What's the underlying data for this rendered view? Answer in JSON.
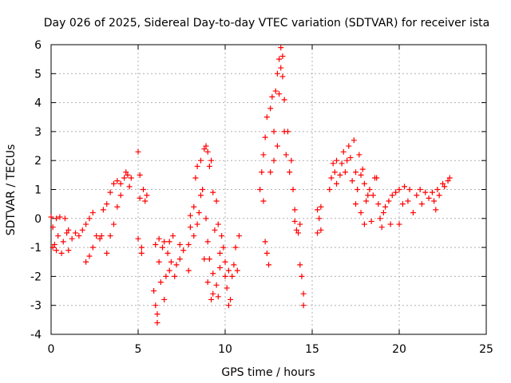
{
  "chart_data": {
    "type": "scatter",
    "title": "Day 026 of 2025, Sidereal Day-to-day VTEC variation (SDTVAR) for receiver ista",
    "xlabel": "GPS time / hours",
    "ylabel": "SDTVAR / TECUs",
    "xlim": [
      0,
      25
    ],
    "ylim": [
      -4,
      6
    ],
    "xticks": [
      "0",
      "5",
      "10",
      "15",
      "20",
      "25"
    ],
    "yticks": [
      "-4",
      "-3",
      "-2",
      "-1",
      "0",
      "1",
      "2",
      "3",
      "4",
      "5",
      "6"
    ],
    "grid": true,
    "marker": "+",
    "color": "#ff0000",
    "series": [
      {
        "name": "SDTVAR ista",
        "points": [
          [
            0.0,
            0.05
          ],
          [
            0.1,
            -0.3
          ],
          [
            0.1,
            -1.0
          ],
          [
            0.2,
            -0.9
          ],
          [
            0.3,
            0.0
          ],
          [
            0.3,
            -1.1
          ],
          [
            0.4,
            -0.6
          ],
          [
            0.5,
            0.05
          ],
          [
            0.6,
            -1.2
          ],
          [
            0.7,
            -0.8
          ],
          [
            0.8,
            0.0
          ],
          [
            0.9,
            -0.5
          ],
          [
            1.0,
            -1.1
          ],
          [
            1.0,
            -0.4
          ],
          [
            1.2,
            -0.7
          ],
          [
            1.4,
            -0.5
          ],
          [
            1.6,
            -0.6
          ],
          [
            1.8,
            -0.4
          ],
          [
            2.0,
            -0.2
          ],
          [
            2.0,
            -1.5
          ],
          [
            2.2,
            -1.3
          ],
          [
            2.2,
            0.0
          ],
          [
            2.4,
            -1.0
          ],
          [
            2.4,
            0.2
          ],
          [
            2.6,
            -0.6
          ],
          [
            2.8,
            -0.7
          ],
          [
            2.9,
            -0.6
          ],
          [
            3.0,
            0.3
          ],
          [
            3.2,
            -1.2
          ],
          [
            3.2,
            0.5
          ],
          [
            3.4,
            -0.6
          ],
          [
            3.4,
            0.9
          ],
          [
            3.6,
            -0.2
          ],
          [
            3.6,
            1.2
          ],
          [
            3.8,
            0.4
          ],
          [
            3.8,
            1.3
          ],
          [
            4.0,
            0.8
          ],
          [
            4.0,
            1.2
          ],
          [
            4.2,
            1.4
          ],
          [
            4.3,
            1.6
          ],
          [
            4.4,
            1.5
          ],
          [
            4.5,
            1.1
          ],
          [
            4.6,
            1.4
          ],
          [
            5.0,
            2.3
          ],
          [
            5.0,
            -0.7
          ],
          [
            5.1,
            1.5
          ],
          [
            5.1,
            0.7
          ],
          [
            5.2,
            -1.0
          ],
          [
            5.2,
            -1.2
          ],
          [
            5.3,
            1.0
          ],
          [
            5.4,
            0.6
          ],
          [
            5.5,
            0.8
          ],
          [
            5.9,
            -2.5
          ],
          [
            6.0,
            -3.0
          ],
          [
            6.0,
            -0.9
          ],
          [
            6.1,
            -3.6
          ],
          [
            6.1,
            -3.3
          ],
          [
            6.2,
            -1.5
          ],
          [
            6.2,
            -0.7
          ],
          [
            6.3,
            -2.2
          ],
          [
            6.4,
            -1.0
          ],
          [
            6.5,
            -2.8
          ],
          [
            6.5,
            -0.8
          ],
          [
            6.6,
            -2.0
          ],
          [
            6.7,
            -1.2
          ],
          [
            6.8,
            -1.8
          ],
          [
            6.8,
            -0.8
          ],
          [
            6.9,
            -1.5
          ],
          [
            7.0,
            -0.6
          ],
          [
            7.1,
            -2.0
          ],
          [
            7.2,
            -1.6
          ],
          [
            7.4,
            -0.9
          ],
          [
            7.4,
            -1.4
          ],
          [
            7.6,
            -1.1
          ],
          [
            7.9,
            -1.8
          ],
          [
            7.9,
            -0.9
          ],
          [
            8.0,
            -0.3
          ],
          [
            8.0,
            0.1
          ],
          [
            8.2,
            -0.6
          ],
          [
            8.2,
            0.4
          ],
          [
            8.3,
            1.4
          ],
          [
            8.4,
            -0.2
          ],
          [
            8.4,
            1.8
          ],
          [
            8.5,
            0.2
          ],
          [
            8.6,
            0.8
          ],
          [
            8.6,
            2.0
          ],
          [
            8.7,
            1.0
          ],
          [
            8.8,
            2.4
          ],
          [
            8.8,
            -1.4
          ],
          [
            8.9,
            2.5
          ],
          [
            8.9,
            0.0
          ],
          [
            9.0,
            2.3
          ],
          [
            9.0,
            -0.8
          ],
          [
            9.0,
            -2.2
          ],
          [
            9.1,
            1.8
          ],
          [
            9.1,
            -1.4
          ],
          [
            9.2,
            2.0
          ],
          [
            9.2,
            -2.8
          ],
          [
            9.3,
            0.9
          ],
          [
            9.3,
            -1.9
          ],
          [
            9.3,
            -2.6
          ],
          [
            9.4,
            -0.4
          ],
          [
            9.5,
            0.6
          ],
          [
            9.5,
            -2.3
          ],
          [
            9.6,
            -0.2
          ],
          [
            9.6,
            -2.7
          ],
          [
            9.7,
            -1.2
          ],
          [
            9.7,
            -1.7
          ],
          [
            9.8,
            -0.6
          ],
          [
            9.9,
            -1.0
          ],
          [
            10.0,
            -1.5
          ],
          [
            10.0,
            -2.0
          ],
          [
            10.1,
            -2.4
          ],
          [
            10.2,
            -1.8
          ],
          [
            10.2,
            -3.0
          ],
          [
            10.3,
            -2.8
          ],
          [
            10.4,
            -2.0
          ],
          [
            10.5,
            -1.6
          ],
          [
            10.6,
            -1.0
          ],
          [
            10.7,
            -1.8
          ],
          [
            10.8,
            -0.6
          ],
          [
            12.0,
            1.0
          ],
          [
            12.1,
            1.6
          ],
          [
            12.2,
            0.6
          ],
          [
            12.2,
            2.2
          ],
          [
            12.3,
            -0.8
          ],
          [
            12.3,
            2.8
          ],
          [
            12.4,
            -1.2
          ],
          [
            12.4,
            3.5
          ],
          [
            12.5,
            -1.6
          ],
          [
            12.6,
            3.8
          ],
          [
            12.6,
            1.6
          ],
          [
            12.7,
            4.2
          ],
          [
            12.8,
            3.0
          ],
          [
            12.8,
            2.0
          ],
          [
            12.9,
            4.4
          ],
          [
            13.0,
            2.5
          ],
          [
            13.0,
            5.0
          ],
          [
            13.1,
            5.5
          ],
          [
            13.1,
            4.3
          ],
          [
            13.2,
            5.9
          ],
          [
            13.2,
            5.2
          ],
          [
            13.3,
            4.9
          ],
          [
            13.3,
            5.6
          ],
          [
            13.4,
            4.1
          ],
          [
            13.4,
            3.0
          ],
          [
            13.5,
            2.2
          ],
          [
            13.6,
            3.0
          ],
          [
            13.7,
            1.6
          ],
          [
            13.8,
            2.0
          ],
          [
            13.9,
            1.0
          ],
          [
            14.0,
            0.3
          ],
          [
            14.0,
            -0.1
          ],
          [
            14.1,
            -0.4
          ],
          [
            14.2,
            -0.5
          ],
          [
            14.3,
            -0.2
          ],
          [
            14.3,
            -1.6
          ],
          [
            14.4,
            -2.0
          ],
          [
            14.5,
            -2.6
          ],
          [
            14.5,
            -3.0
          ],
          [
            15.3,
            -0.5
          ],
          [
            15.3,
            0.3
          ],
          [
            15.4,
            0.0
          ],
          [
            15.5,
            0.4
          ],
          [
            15.5,
            -0.4
          ],
          [
            16.0,
            1.0
          ],
          [
            16.1,
            1.4
          ],
          [
            16.2,
            1.9
          ],
          [
            16.3,
            1.6
          ],
          [
            16.4,
            2.0
          ],
          [
            16.4,
            1.2
          ],
          [
            16.6,
            1.5
          ],
          [
            16.7,
            1.9
          ],
          [
            16.8,
            2.3
          ],
          [
            16.9,
            1.6
          ],
          [
            17.0,
            2.0
          ],
          [
            17.1,
            2.5
          ],
          [
            17.2,
            2.1
          ],
          [
            17.3,
            1.3
          ],
          [
            17.4,
            2.7
          ],
          [
            17.5,
            1.6
          ],
          [
            17.5,
            0.5
          ],
          [
            17.6,
            1.0
          ],
          [
            17.7,
            2.2
          ],
          [
            17.8,
            0.2
          ],
          [
            17.8,
            1.5
          ],
          [
            17.9,
            1.7
          ],
          [
            18.0,
            -0.2
          ],
          [
            18.0,
            1.2
          ],
          [
            18.1,
            0.6
          ],
          [
            18.2,
            0.8
          ],
          [
            18.3,
            1.0
          ],
          [
            18.4,
            -0.1
          ],
          [
            18.5,
            0.8
          ],
          [
            18.6,
            1.4
          ],
          [
            18.7,
            1.4
          ],
          [
            18.8,
            0.5
          ],
          [
            18.9,
            0.0
          ],
          [
            19.0,
            -0.3
          ],
          [
            19.1,
            0.2
          ],
          [
            19.2,
            0.4
          ],
          [
            19.4,
            0.6
          ],
          [
            19.5,
            -0.2
          ],
          [
            19.6,
            0.8
          ],
          [
            19.8,
            0.9
          ],
          [
            20.0,
            1.0
          ],
          [
            20.0,
            -0.2
          ],
          [
            20.2,
            0.5
          ],
          [
            20.3,
            1.1
          ],
          [
            20.5,
            0.6
          ],
          [
            20.6,
            1.0
          ],
          [
            20.8,
            0.2
          ],
          [
            21.0,
            0.8
          ],
          [
            21.2,
            1.0
          ],
          [
            21.3,
            0.5
          ],
          [
            21.5,
            0.9
          ],
          [
            21.7,
            0.7
          ],
          [
            21.9,
            0.9
          ],
          [
            22.0,
            0.6
          ],
          [
            22.1,
            0.3
          ],
          [
            22.2,
            1.0
          ],
          [
            22.3,
            0.8
          ],
          [
            22.5,
            1.2
          ],
          [
            22.6,
            1.1
          ],
          [
            22.8,
            1.3
          ],
          [
            22.9,
            1.4
          ]
        ]
      }
    ]
  }
}
